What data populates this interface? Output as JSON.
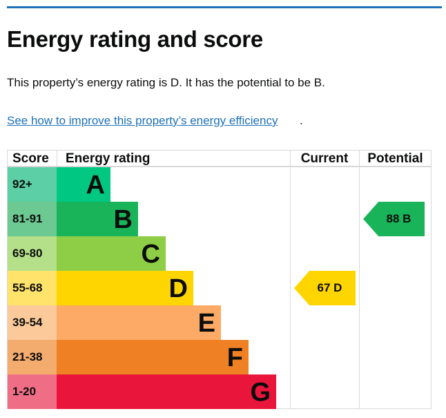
{
  "title": "Energy rating and score",
  "summary": "This property’s energy rating is D. It has the potential to be B.",
  "link": "See how to improve this property’s energy efficiency",
  "link_suffix": ".",
  "headers": {
    "score": "Score",
    "rating": "Energy rating",
    "current": "Current",
    "potential": "Potential"
  },
  "bands": [
    {
      "score": "92+",
      "letter": "A",
      "color": "#00c781",
      "light": "#5ccfa6"
    },
    {
      "score": "81-91",
      "letter": "B",
      "color": "#19b459",
      "light": "#6cc992"
    },
    {
      "score": "69-80",
      "letter": "C",
      "color": "#8dce46",
      "light": "#b5e08a"
    },
    {
      "score": "55-68",
      "letter": "D",
      "color": "#ffd500",
      "light": "#ffe36b"
    },
    {
      "score": "39-54",
      "letter": "E",
      "color": "#fcaa65",
      "light": "#fcc99a"
    },
    {
      "score": "21-38",
      "letter": "F",
      "color": "#ef8023",
      "light": "#f4ab6e"
    },
    {
      "score": "1-20",
      "letter": "G",
      "color": "#e9153b",
      "light": "#f06e85"
    }
  ],
  "current": {
    "label": "67  D",
    "score": 67,
    "band": "D"
  },
  "potential": {
    "label": "88  B",
    "score": 88,
    "band": "B"
  }
}
